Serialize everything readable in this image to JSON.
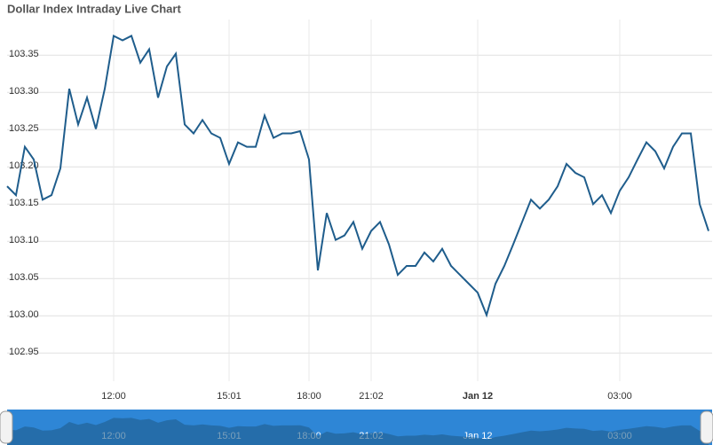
{
  "chart_data": {
    "type": "line",
    "title": "Dollar Index Intraday Live Chart",
    "categories": [
      null,
      null,
      null,
      null,
      null,
      null,
      null,
      null,
      null,
      null,
      null,
      null,
      "12:00",
      null,
      null,
      null,
      null,
      null,
      null,
      null,
      null,
      null,
      null,
      null,
      null,
      "15:01",
      null,
      null,
      null,
      null,
      null,
      null,
      null,
      null,
      "18:00",
      null,
      null,
      null,
      null,
      null,
      null,
      "21:02",
      null,
      null,
      null,
      null,
      null,
      null,
      null,
      null,
      null,
      null,
      null,
      "Jan 12",
      null,
      null,
      null,
      null,
      null,
      null,
      null,
      null,
      null,
      null,
      null,
      null,
      null,
      null,
      null,
      "03:00",
      null,
      null,
      null,
      null,
      null,
      null,
      null,
      null,
      null,
      null
    ],
    "series": [
      {
        "name": "Dollar Index",
        "color": "#1f5d8c",
        "values": [
          103.174,
          103.162,
          103.227,
          103.21,
          103.156,
          103.162,
          103.198,
          103.305,
          103.257,
          103.293,
          103.251,
          103.305,
          103.376,
          103.37,
          103.376,
          103.34,
          103.358,
          103.293,
          103.335,
          103.352,
          103.257,
          103.245,
          103.263,
          103.245,
          103.239,
          103.204,
          103.233,
          103.227,
          103.227,
          103.269,
          103.239,
          103.245,
          103.245,
          103.248,
          103.21,
          103.061,
          103.138,
          103.102,
          103.108,
          103.126,
          103.09,
          103.114,
          103.126,
          103.096,
          103.055,
          103.067,
          103.067,
          103.085,
          103.073,
          103.09,
          103.067,
          103.055,
          103.043,
          103.031,
          103.001,
          103.043,
          103.067,
          103.096,
          103.126,
          103.156,
          103.144,
          103.156,
          103.174,
          103.204,
          103.192,
          103.186,
          103.15,
          103.162,
          103.138,
          103.168,
          103.186,
          103.21,
          103.233,
          103.221,
          103.198,
          103.227,
          103.245,
          103.245,
          103.15,
          103.114
        ]
      }
    ],
    "ylim": [
      102.936,
      103.398
    ],
    "yticks": [
      102.95,
      {
        "value": 103.0,
        "label": "103.00"
      },
      103.05,
      {
        "value": 103.1,
        "label": "103.10"
      },
      103.15,
      {
        "value": 103.2,
        "label": "103.20"
      },
      103.25,
      {
        "value": 103.3,
        "label": "103.30"
      },
      103.35
    ],
    "grid": true
  }
}
